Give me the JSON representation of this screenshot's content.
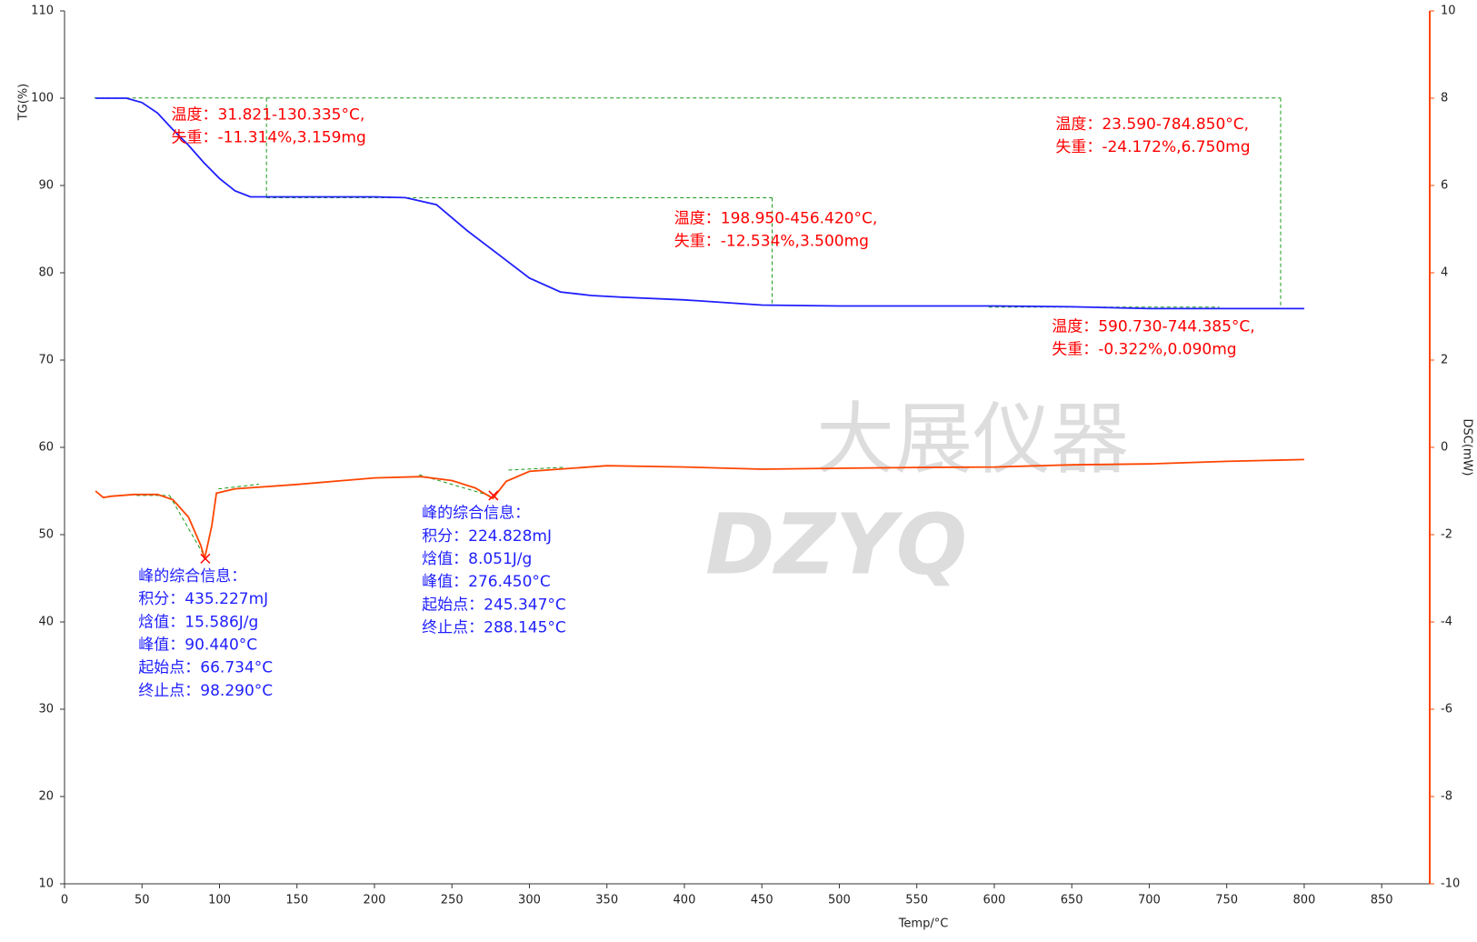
{
  "chart_data": {
    "type": "line",
    "xlabel": "Temp/°C",
    "ylabel": "TG(%)",
    "y2label": "DSC(mW)",
    "xlim": [
      0,
      881
    ],
    "xticks": [
      0,
      50,
      100,
      150,
      200,
      250,
      300,
      350,
      400,
      450,
      500,
      550,
      600,
      650,
      700,
      750,
      800,
      850
    ],
    "ylim": [
      10,
      110
    ],
    "yticks": [
      10,
      20,
      30,
      40,
      50,
      60,
      70,
      80,
      90,
      100,
      110
    ],
    "y2lim": [
      -10,
      10
    ],
    "y2ticks": [
      -10,
      -8,
      -6,
      -4,
      -2,
      0,
      2,
      4,
      6,
      8,
      10
    ],
    "y2color": "#ff4500",
    "grid": false,
    "series": [
      {
        "name": "TG",
        "color": "#1f1fff",
        "axis": "y",
        "x": [
          20,
          40,
          50,
          60,
          70,
          80,
          90,
          100,
          110,
          120,
          130,
          200,
          220,
          240,
          260,
          280,
          300,
          320,
          340,
          360,
          400,
          450,
          500,
          600,
          650,
          700,
          750,
          800
        ],
        "values": [
          100,
          100,
          99.5,
          98.3,
          96.4,
          94.6,
          92.6,
          90.8,
          89.4,
          88.7,
          88.7,
          88.7,
          88.6,
          87.8,
          84.8,
          82.1,
          79.4,
          77.8,
          77.4,
          77.2,
          76.9,
          76.3,
          76.2,
          76.2,
          76.1,
          75.9,
          75.9,
          75.9
        ]
      },
      {
        "name": "DSC",
        "color": "#ff4500",
        "axis": "y2",
        "x": [
          20,
          25,
          30,
          45,
          60,
          70,
          80,
          88,
          90.4,
          95,
          98,
          110,
          150,
          200,
          230,
          250,
          265,
          276.45,
          285,
          300,
          350,
          400,
          450,
          500,
          550,
          600,
          650,
          700,
          750,
          800
        ],
        "values": [
          -1.0,
          -1.15,
          -1.12,
          -1.08,
          -1.08,
          -1.2,
          -1.6,
          -2.25,
          -2.55,
          -1.8,
          -1.05,
          -0.95,
          -0.85,
          -0.7,
          -0.67,
          -0.76,
          -0.93,
          -1.17,
          -0.78,
          -0.55,
          -0.42,
          -0.45,
          -0.5,
          -0.48,
          -0.46,
          -0.45,
          -0.4,
          -0.38,
          -0.32,
          -0.28
        ]
      }
    ],
    "annotations": [
      {
        "color": "#ff0000",
        "lines": [
          "温度：31.821-130.335°C,",
          "失重：-11.314%,3.159mg"
        ]
      },
      {
        "color": "#ff0000",
        "lines": [
          "温度：198.950-456.420°C,",
          "失重：-12.534%,3.500mg"
        ]
      },
      {
        "color": "#ff0000",
        "lines": [
          "温度：23.590-784.850°C,",
          "失重：-24.172%,6.750mg"
        ]
      },
      {
        "color": "#ff0000",
        "lines": [
          "温度：590.730-744.385°C,",
          "失重：-0.322%,0.090mg"
        ]
      },
      {
        "color": "#1f1fff",
        "lines": [
          "峰的综合信息：",
          "积分：435.227mJ",
          "焓值：15.586J/g",
          "峰值：90.440°C",
          "起始点：66.734°C",
          "终止点：98.290°C"
        ]
      },
      {
        "color": "#1f1fff",
        "lines": [
          "峰的综合信息：",
          "积分：224.828mJ",
          "焓值：8.051J/g",
          "峰值：276.450°C",
          "起始点：245.347°C",
          "终止点：288.145°C"
        ]
      }
    ],
    "watermark": [
      "大展仪器",
      "DZYQ"
    ]
  }
}
